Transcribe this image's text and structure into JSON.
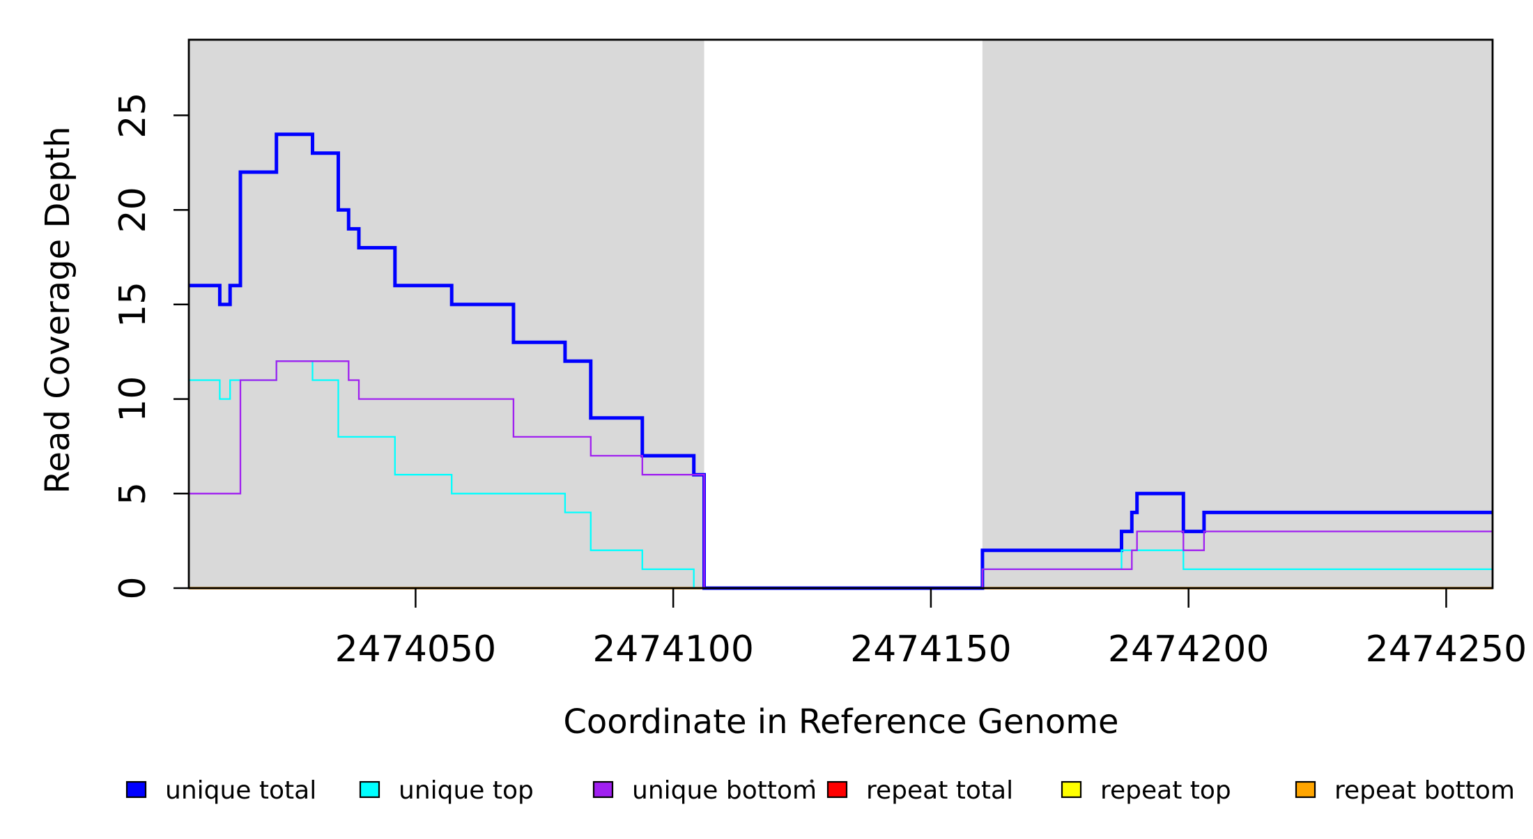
{
  "figure": {
    "x_axis_label": "Coordinate in Reference Genome",
    "y_axis_label": "Read Coverage Depth"
  },
  "chart_data": {
    "type": "line",
    "subtype": "step",
    "title": "",
    "xlabel": "Coordinate in Reference Genome",
    "ylabel": "Read Coverage Depth",
    "xlim": [
      2474006,
      2474259
    ],
    "ylim": [
      0,
      29
    ],
    "grid": false,
    "legend_position": "bottom",
    "x_ticks": [
      2474050,
      2474100,
      2474150,
      2474200,
      2474250
    ],
    "x_tick_labels": [
      "2474050",
      "2474100",
      "2474150",
      "2474200",
      "2474250"
    ],
    "y_ticks": [
      0,
      5,
      10,
      15,
      20,
      25
    ],
    "y_tick_labels": [
      "0",
      "5",
      "10",
      "15",
      "20",
      "25"
    ],
    "shaded_regions": [
      {
        "x0": 2474006,
        "x1": 2474106,
        "color": "#D9D9D9"
      },
      {
        "x0": 2474160,
        "x1": 2474259,
        "color": "#D9D9D9"
      }
    ],
    "series": [
      {
        "name": "unique total",
        "color": "#0000FF",
        "line_width": 5,
        "z": 4,
        "steps": [
          [
            2474006,
            16
          ],
          [
            2474012,
            15
          ],
          [
            2474014,
            16
          ],
          [
            2474016,
            22
          ],
          [
            2474023,
            24
          ],
          [
            2474030,
            23
          ],
          [
            2474035,
            20
          ],
          [
            2474037,
            19
          ],
          [
            2474039,
            18
          ],
          [
            2474046,
            16
          ],
          [
            2474057,
            15
          ],
          [
            2474069,
            13
          ],
          [
            2474079,
            12
          ],
          [
            2474084,
            9
          ],
          [
            2474094,
            7
          ],
          [
            2474104,
            6
          ],
          [
            2474106,
            0
          ],
          [
            2474160,
            2
          ],
          [
            2474187,
            3
          ],
          [
            2474189,
            4
          ],
          [
            2474190,
            5
          ],
          [
            2474199,
            3
          ],
          [
            2474203,
            4
          ],
          [
            2474259,
            4
          ]
        ]
      },
      {
        "name": "unique top",
        "color": "#00FFFF",
        "line_width": 2.3,
        "z": 5,
        "steps": [
          [
            2474006,
            11
          ],
          [
            2474012,
            10
          ],
          [
            2474014,
            11
          ],
          [
            2474023,
            12
          ],
          [
            2474030,
            11
          ],
          [
            2474035,
            8
          ],
          [
            2474046,
            6
          ],
          [
            2474057,
            5
          ],
          [
            2474079,
            4
          ],
          [
            2474084,
            2
          ],
          [
            2474094,
            1
          ],
          [
            2474104,
            0
          ],
          [
            2474160,
            1
          ],
          [
            2474187,
            2
          ],
          [
            2474199,
            1
          ],
          [
            2474259,
            1
          ]
        ]
      },
      {
        "name": "unique bottom",
        "color": "#A020F0",
        "line_width": 2.3,
        "z": 6,
        "steps": [
          [
            2474006,
            5
          ],
          [
            2474016,
            11
          ],
          [
            2474023,
            12
          ],
          [
            2474037,
            11
          ],
          [
            2474039,
            10
          ],
          [
            2474069,
            8
          ],
          [
            2474084,
            7
          ],
          [
            2474094,
            6
          ],
          [
            2474106,
            0
          ],
          [
            2474160,
            1
          ],
          [
            2474189,
            2
          ],
          [
            2474190,
            3
          ],
          [
            2474199,
            2
          ],
          [
            2474203,
            3
          ],
          [
            2474259,
            3
          ]
        ]
      },
      {
        "name": "repeat total",
        "color": "#FF0000",
        "line_width": 3.2,
        "z": 1,
        "steps": [
          [
            2474006,
            0
          ],
          [
            2474259,
            0
          ]
        ]
      },
      {
        "name": "repeat top",
        "color": "#FFFF00",
        "line_width": 3.2,
        "z": 2,
        "steps": [
          [
            2474006,
            0
          ],
          [
            2474259,
            0
          ]
        ]
      },
      {
        "name": "repeat bottom",
        "color": "#FFA500",
        "line_width": 3.2,
        "z": 3,
        "steps": [
          [
            2474006,
            0
          ],
          [
            2474259,
            0
          ]
        ]
      }
    ],
    "legend": [
      {
        "label": "unique total",
        "color": "#0000FF"
      },
      {
        "label": "unique top",
        "color": "#00FFFF"
      },
      {
        "label": "unique bottom",
        "color": "#A020F0"
      },
      {
        "label": "repeat total",
        "color": "#FF0000"
      },
      {
        "label": "repeat top",
        "color": "#FFFF00"
      },
      {
        "label": "repeat bottom",
        "color": "#FFA500"
      }
    ]
  }
}
